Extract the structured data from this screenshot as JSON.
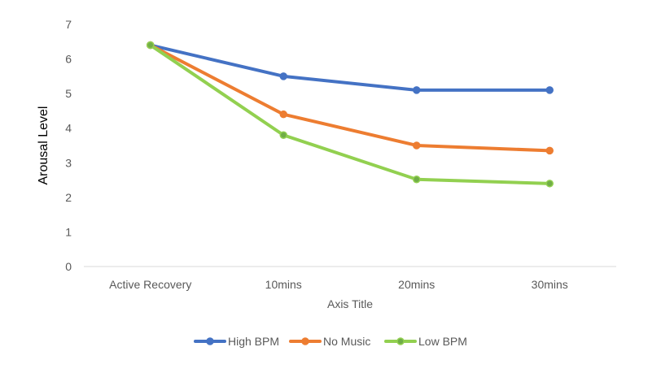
{
  "chart_data": {
    "type": "line",
    "title": "",
    "xlabel": "Axis Title",
    "ylabel": "Arousal Level",
    "categories": [
      "Active Recovery",
      "10mins",
      "20mins",
      "30mins"
    ],
    "ylim": [
      0,
      7
    ],
    "yticks": [
      "0",
      "1",
      "2",
      "3",
      "4",
      "5",
      "6",
      "7"
    ],
    "grid": false,
    "legend_position": "bottom",
    "series": [
      {
        "name": "High BPM",
        "values": [
          6.4,
          5.5,
          5.1,
          5.1
        ],
        "color": "#4472C4",
        "marker_fill": "#4472C4"
      },
      {
        "name": "No Music",
        "values": [
          6.4,
          4.4,
          3.5,
          3.35
        ],
        "color": "#ED7D31",
        "marker_fill": "#ED7D31"
      },
      {
        "name": "Low BPM",
        "values": [
          6.4,
          3.8,
          2.52,
          2.4
        ],
        "color": "#92D050",
        "marker_fill": "#70AD47"
      }
    ]
  }
}
